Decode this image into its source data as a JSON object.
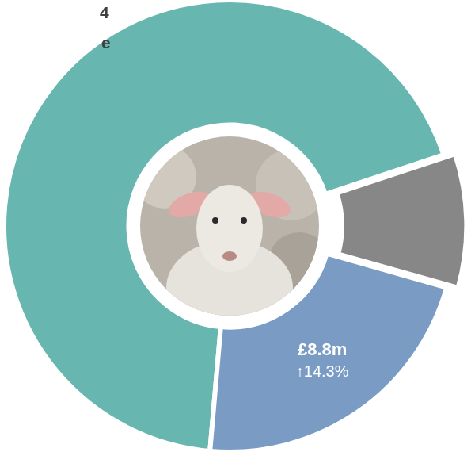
{
  "chart_data": {
    "type": "doughnut",
    "values": [
      27.4,
      3.8,
      8.8
    ],
    "colors": [
      "#67b7b0",
      "#878787",
      "#7a9cc4"
    ],
    "data_labels": true,
    "value_labels": [
      null,
      null,
      "£8.8m"
    ],
    "changes": [
      null,
      null,
      14.3
    ],
    "change_labels": [
      null,
      null,
      "↑14.3%"
    ],
    "annotations": [
      "4",
      "e"
    ]
  }
}
